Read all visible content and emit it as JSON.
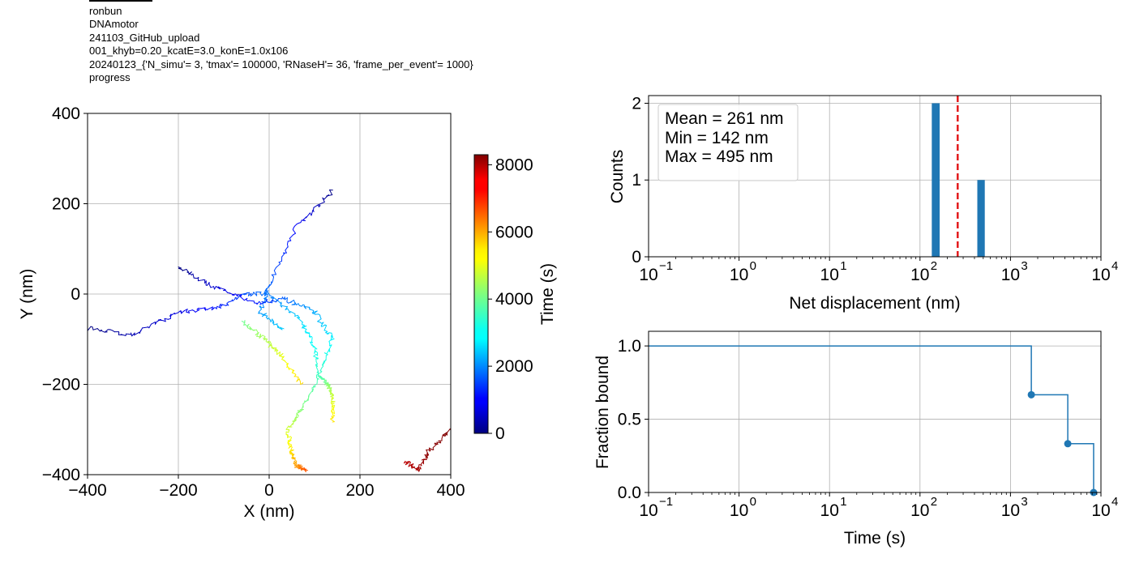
{
  "header": {
    "lines": [
      "ronbun",
      "DNAmotor",
      "241103_GitHub_upload",
      "001_khyb=0.20_kcatE=3.0_konE=1.0x106",
      "20240123_{'N_simu'= 3, 'tmax'= 100000, 'RNaseH'= 36, 'frame_per_event'= 1000}",
      "progress"
    ]
  },
  "chart_data": [
    {
      "type": "line",
      "xlabel": "X (nm)",
      "ylabel": "Y (nm)",
      "xlim": [
        -400,
        400
      ],
      "ylim": [
        -400,
        400
      ],
      "xticks": [
        "−400",
        "−200",
        "0",
        "200",
        "400"
      ],
      "yticks": [
        "−400",
        "−200",
        "0",
        "200",
        "400"
      ],
      "grid": true,
      "colormap": "jet",
      "colorbar": {
        "label": "Time (s)",
        "range": [
          0,
          8300
        ],
        "ticks": [
          "0",
          "2000",
          "4000",
          "6000",
          "8000"
        ]
      },
      "series": [
        {
          "t": [
            0,
            1000,
            1800,
            2300,
            2700
          ],
          "x": [
            140,
            60,
            0,
            -20,
            30
          ],
          "y": [
            230,
            150,
            20,
            -40,
            -80
          ]
        },
        {
          "t": [
            0,
            400,
            800,
            1200,
            1600,
            2000,
            2800,
            3200,
            3600,
            4200,
            4800,
            5400
          ],
          "x": [
            -400,
            -300,
            -200,
            -110,
            -60,
            0,
            70,
            100,
            110,
            130,
            140,
            140
          ],
          "y": [
            -75,
            -90,
            -40,
            -30,
            0,
            0,
            -60,
            -120,
            -180,
            -200,
            -230,
            -280
          ]
        },
        {
          "t": [
            0,
            600,
            1200,
            1800,
            2400,
            3000,
            3600,
            4200,
            4800,
            5400,
            6000,
            6600
          ],
          "x": [
            -200,
            -130,
            -30,
            30,
            100,
            140,
            110,
            70,
            40,
            50,
            60,
            80
          ],
          "y": [
            60,
            20,
            -20,
            -10,
            -40,
            -100,
            -180,
            -260,
            -300,
            -350,
            -380,
            -390
          ]
        },
        {
          "t": [
            4000,
            4500,
            5000,
            5500
          ],
          "x": [
            -60,
            -10,
            30,
            70
          ],
          "y": [
            -60,
            -100,
            -140,
            -200
          ]
        },
        {
          "t": [
            7800,
            8000,
            8200,
            8300
          ],
          "x": [
            300,
            330,
            350,
            400
          ],
          "y": [
            -370,
            -390,
            -350,
            -300
          ]
        }
      ]
    },
    {
      "type": "bar",
      "xlabel": "Net displacement (nm)",
      "ylabel": "Counts",
      "xscale": "log",
      "xlim": [
        0.1,
        10000
      ],
      "ylim": [
        0,
        2.1
      ],
      "yticks": [
        0,
        1,
        2
      ],
      "grid": true,
      "bars": [
        {
          "x0": 135,
          "x1": 165,
          "value": 2
        },
        {
          "x0": 430,
          "x1": 520,
          "value": 1
        }
      ],
      "mean_line": 261,
      "annotations": [
        "Mean = 261 nm",
        "Min = 142 nm",
        "Max = 495 nm"
      ]
    },
    {
      "type": "line",
      "xlabel": "Time (s)",
      "ylabel": "Fraction bound",
      "xscale": "log",
      "xlim": [
        0.1,
        10000
      ],
      "ylim": [
        0,
        1.1
      ],
      "yticks": [
        "0.0",
        "0.5",
        "1.0"
      ],
      "grid": true,
      "step": true,
      "x": [
        0.1,
        1700,
        4300,
        8300
      ],
      "y": [
        1.0,
        0.667,
        0.333,
        0.0
      ]
    }
  ]
}
